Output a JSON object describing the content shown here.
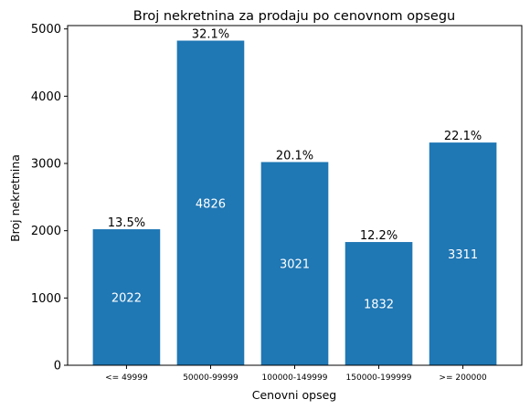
{
  "chart_data": {
    "type": "bar",
    "title": "Broj nekretnina za prodaju po cenovnom opsegu",
    "xlabel": "Cenovni opseg",
    "ylabel": "Broj nekretnina",
    "categories": [
      "<= 49999",
      "50000-99999",
      "100000-149999",
      "150000-199999",
      ">= 200000"
    ],
    "values": [
      2022,
      4826,
      3021,
      1832,
      3311
    ],
    "value_labels": [
      "2022",
      "4826",
      "3021",
      "1832",
      "3311"
    ],
    "percent_labels": [
      "13.5%",
      "32.1%",
      "20.1%",
      "12.2%",
      "22.1%"
    ],
    "ylim": [
      0,
      5050
    ],
    "yticks": [
      0,
      1000,
      2000,
      3000,
      4000,
      5000
    ],
    "ytick_labels": [
      "0",
      "1000",
      "2000",
      "3000",
      "4000",
      "5000"
    ],
    "grid": false,
    "colors": {
      "bar": "#1f77b4",
      "inner_label": "#ffffff",
      "text": "#000000"
    }
  }
}
